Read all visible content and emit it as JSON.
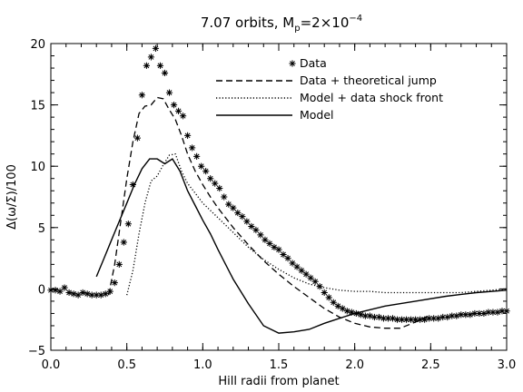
{
  "chart_data": {
    "type": "line",
    "title": "7.07 orbits, M",
    "title_sub": "p",
    "title_value": "=2×10",
    "title_sup": "−4",
    "xlabel": "Hill radii from planet",
    "ylabel": "Δ(ω/Σ)/100",
    "xlim": [
      0.0,
      3.0
    ],
    "ylim": [
      -5,
      20
    ],
    "xticks": [
      0.0,
      0.5,
      1.0,
      1.5,
      2.0,
      2.5,
      3.0
    ],
    "xtick_labels": [
      "0.0",
      "0.5",
      "1.0",
      "1.5",
      "2.0",
      "2.5",
      "3.0"
    ],
    "yticks": [
      -5,
      0,
      5,
      10,
      15,
      20
    ],
    "ytick_labels": [
      "−5",
      "0",
      "5",
      "10",
      "15",
      "20"
    ],
    "grid": false,
    "legend_position": "top-right",
    "series": [
      {
        "name": "Data",
        "style": "asterisk",
        "x": [
          0.0,
          0.03,
          0.06,
          0.09,
          0.12,
          0.15,
          0.18,
          0.21,
          0.24,
          0.27,
          0.3,
          0.33,
          0.36,
          0.39,
          0.42,
          0.45,
          0.48,
          0.51,
          0.54,
          0.57,
          0.6,
          0.63,
          0.66,
          0.69,
          0.72,
          0.75,
          0.78,
          0.81,
          0.84,
          0.87,
          0.9,
          0.93,
          0.96,
          0.99,
          1.02,
          1.05,
          1.08,
          1.11,
          1.14,
          1.17,
          1.2,
          1.23,
          1.26,
          1.29,
          1.32,
          1.35,
          1.38,
          1.41,
          1.44,
          1.47,
          1.5,
          1.53,
          1.56,
          1.59,
          1.62,
          1.65,
          1.68,
          1.71,
          1.74,
          1.77,
          1.8,
          1.83,
          1.86,
          1.89,
          1.92,
          1.95,
          1.98,
          2.01,
          2.04,
          2.07,
          2.1,
          2.13,
          2.16,
          2.19,
          2.22,
          2.25,
          2.28,
          2.31,
          2.34,
          2.37,
          2.4,
          2.43,
          2.46,
          2.49,
          2.52,
          2.55,
          2.58,
          2.61,
          2.64,
          2.67,
          2.7,
          2.73,
          2.76,
          2.79,
          2.82,
          2.85,
          2.88,
          2.91,
          2.94,
          2.97,
          3.0
        ],
        "y": [
          -0.1,
          -0.1,
          -0.2,
          0.1,
          -0.3,
          -0.4,
          -0.5,
          -0.3,
          -0.4,
          -0.5,
          -0.5,
          -0.5,
          -0.4,
          -0.2,
          0.5,
          2.0,
          3.8,
          5.3,
          8.5,
          12.3,
          15.8,
          18.2,
          18.9,
          19.6,
          18.2,
          17.6,
          16.0,
          15.0,
          14.5,
          14.1,
          12.5,
          11.5,
          10.8,
          10.0,
          9.6,
          9.0,
          8.6,
          8.2,
          7.5,
          6.9,
          6.6,
          6.2,
          5.9,
          5.5,
          5.1,
          4.8,
          4.4,
          4.0,
          3.7,
          3.4,
          3.2,
          2.8,
          2.5,
          2.1,
          1.8,
          1.5,
          1.2,
          0.9,
          0.6,
          0.2,
          -0.3,
          -0.7,
          -1.1,
          -1.4,
          -1.6,
          -1.8,
          -1.9,
          -2.0,
          -2.1,
          -2.2,
          -2.2,
          -2.3,
          -2.3,
          -2.4,
          -2.4,
          -2.4,
          -2.5,
          -2.5,
          -2.5,
          -2.5,
          -2.5,
          -2.5,
          -2.5,
          -2.4,
          -2.4,
          -2.4,
          -2.3,
          -2.3,
          -2.2,
          -2.2,
          -2.1,
          -2.1,
          -2.1,
          -2.0,
          -2.0,
          -2.0,
          -1.9,
          -1.9,
          -1.9,
          -1.8,
          -1.8
        ]
      },
      {
        "name": "Data + theoretical jump",
        "style": "dashed",
        "x": [
          0.38,
          0.42,
          0.46,
          0.5,
          0.54,
          0.58,
          0.62,
          0.66,
          0.7,
          0.74,
          0.78,
          0.82,
          0.86,
          0.9,
          0.95,
          1.0,
          1.05,
          1.1,
          1.2,
          1.3,
          1.4,
          1.5,
          1.6,
          1.7,
          1.8,
          1.9,
          2.0,
          2.1,
          2.2,
          2.3,
          2.4,
          2.5
        ],
        "y": [
          -0.5,
          2.0,
          5.5,
          9.0,
          12.0,
          14.3,
          14.9,
          15.0,
          15.6,
          15.5,
          14.6,
          13.8,
          12.5,
          11.0,
          9.6,
          8.5,
          7.5,
          6.6,
          5.0,
          3.6,
          2.3,
          1.2,
          0.2,
          -0.7,
          -1.6,
          -2.3,
          -2.8,
          -3.1,
          -3.2,
          -3.2,
          -2.7,
          -2.1
        ]
      },
      {
        "name": "Model + data shock front",
        "style": "dotted",
        "x": [
          0.5,
          0.54,
          0.58,
          0.62,
          0.66,
          0.7,
          0.74,
          0.78,
          0.82,
          0.86,
          0.9,
          0.95,
          1.0,
          1.05,
          1.1,
          1.2,
          1.3,
          1.4,
          1.5,
          1.6,
          1.7,
          1.8,
          1.9,
          2.0,
          2.1,
          2.2,
          2.3,
          2.4,
          2.5,
          2.6,
          2.7,
          2.8,
          2.9,
          3.0
        ],
        "y": [
          -0.5,
          1.5,
          4.5,
          7.0,
          8.8,
          9.2,
          10.1,
          10.9,
          11.0,
          9.6,
          8.6,
          7.8,
          7.0,
          6.4,
          5.8,
          4.6,
          3.4,
          2.4,
          1.6,
          0.9,
          0.4,
          0.1,
          -0.1,
          -0.2,
          -0.2,
          -0.3,
          -0.3,
          -0.3,
          -0.3,
          -0.3,
          -0.3,
          -0.2,
          -0.1,
          0.0
        ]
      },
      {
        "name": "Model",
        "style": "solid",
        "x": [
          0.3,
          0.35,
          0.4,
          0.45,
          0.5,
          0.55,
          0.6,
          0.65,
          0.7,
          0.75,
          0.8,
          0.85,
          0.9,
          0.95,
          1.0,
          1.05,
          1.1,
          1.2,
          1.3,
          1.4,
          1.5,
          1.6,
          1.7,
          1.8,
          1.9,
          2.0,
          2.2,
          2.4,
          2.6,
          2.8,
          3.0
        ],
        "y": [
          1.0,
          2.5,
          4.0,
          5.5,
          7.0,
          8.5,
          9.8,
          10.6,
          10.6,
          10.2,
          10.6,
          9.6,
          8.0,
          6.8,
          5.6,
          4.5,
          3.2,
          0.8,
          -1.2,
          -3.0,
          -3.6,
          -3.5,
          -3.3,
          -2.8,
          -2.4,
          -2.0,
          -1.4,
          -1.0,
          -0.6,
          -0.3,
          -0.1
        ]
      }
    ]
  }
}
